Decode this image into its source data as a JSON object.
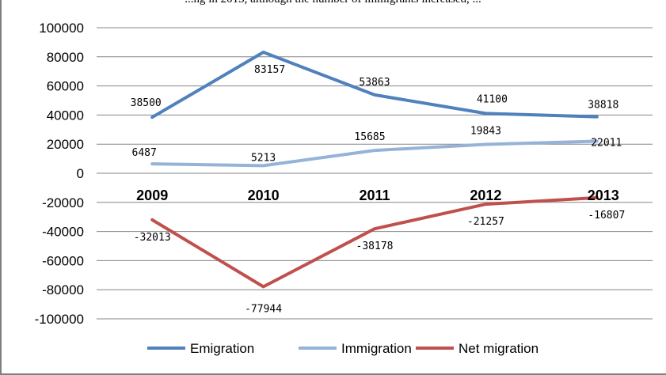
{
  "caption": "...ng in 2013, although the number of immigrants increased, ...",
  "chart_data": {
    "type": "line",
    "categories": [
      "2009",
      "2010",
      "2011",
      "2012",
      "2013"
    ],
    "ylim": [
      -100000,
      100000
    ],
    "yticks": [
      100000,
      80000,
      60000,
      40000,
      20000,
      0,
      -20000,
      -40000,
      -60000,
      -80000,
      -100000
    ],
    "grid": true,
    "legend_position": "bottom",
    "series": [
      {
        "name": "Emigration",
        "values": [
          38500,
          83157,
          53863,
          41100,
          38818
        ],
        "color": "#4f81bd"
      },
      {
        "name": "Immigration",
        "values": [
          6487,
          5213,
          15685,
          19843,
          22011
        ],
        "color": "#95b3d7"
      },
      {
        "name": "Net migration",
        "values": [
          -32013,
          -77944,
          -38178,
          -21257,
          -16807
        ],
        "color": "#c0504d"
      }
    ]
  }
}
